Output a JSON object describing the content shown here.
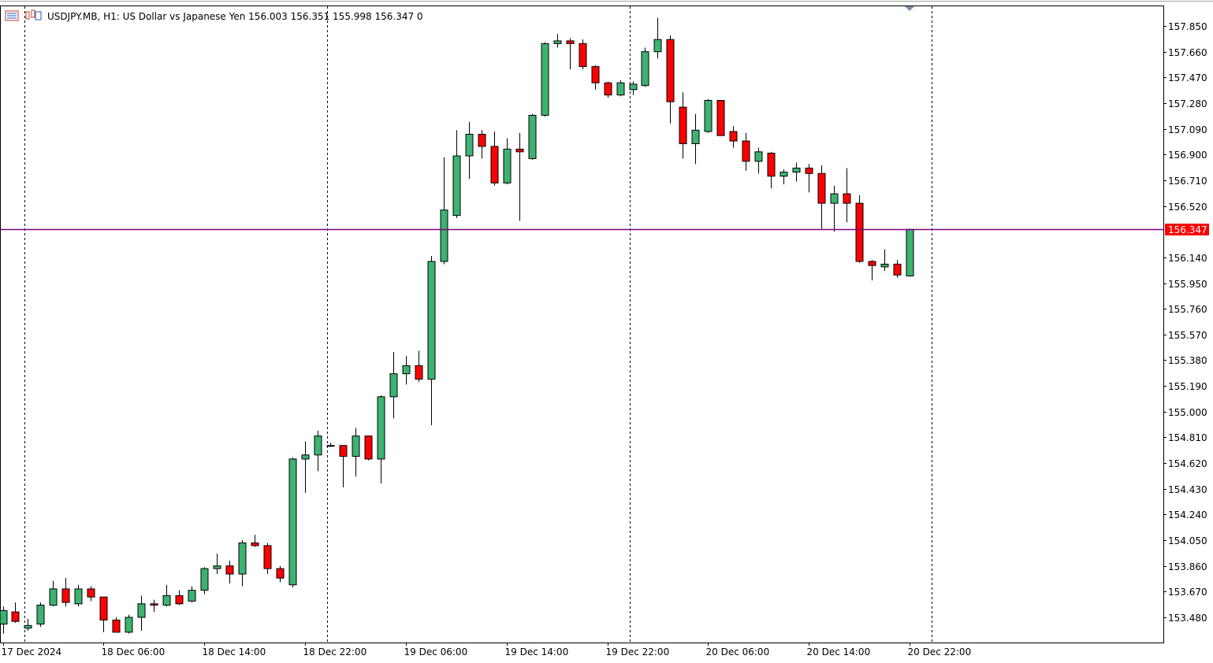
{
  "header": {
    "symbol_line": "USDJPY.MB, H1:  US Dollar vs Japanese Yen  156.003 156.351 155.998 156.347  0"
  },
  "colors": {
    "bull": "#3CB371",
    "bear": "#FF0000",
    "wick": "#000000",
    "bid_line": "#800080",
    "price_tag_bg": "#FF0000",
    "grid": "#000000",
    "background": "#FFFFFF"
  },
  "chart_data": {
    "type": "candlestick",
    "title": "USDJPY.MB, H1:  US Dollar vs Japanese Yen",
    "timeframe": "H1",
    "last_price": 156.347,
    "last_price_label": "156.347",
    "ylim": [
      153.33,
      157.98
    ],
    "y_ticks": [
      157.85,
      157.66,
      157.47,
      157.28,
      157.09,
      156.9,
      156.71,
      156.52,
      156.14,
      155.95,
      155.76,
      155.57,
      155.38,
      155.19,
      155.0,
      154.81,
      154.62,
      154.43,
      154.24,
      154.05,
      153.86,
      153.67,
      153.48
    ],
    "y_tick_labels": [
      "157.850",
      "157.660",
      "157.470",
      "157.280",
      "157.090",
      "156.900",
      "156.710",
      "156.520",
      "156.140",
      "155.950",
      "155.760",
      "155.570",
      "155.380",
      "155.190",
      "155.000",
      "154.810",
      "154.620",
      "154.430",
      "154.240",
      "154.050",
      "153.860",
      "153.670",
      "153.480"
    ],
    "x_tick_labels": [
      {
        "label": "17 Dec 2024",
        "index": 0
      },
      {
        "label": "18 Dec 06:00",
        "index": 8
      },
      {
        "label": "18 Dec 14:00",
        "index": 16
      },
      {
        "label": "18 Dec 22:00",
        "index": 24
      },
      {
        "label": "19 Dec 06:00",
        "index": 32
      },
      {
        "label": "19 Dec 14:00",
        "index": 40
      },
      {
        "label": "19 Dec 22:00",
        "index": 48
      },
      {
        "label": "20 Dec 06:00",
        "index": 56
      },
      {
        "label": "20 Dec 14:00",
        "index": 64
      },
      {
        "label": "20 Dec 22:00",
        "index": 72
      }
    ],
    "separator_indices": [
      1.75,
      25.75,
      49.75,
      73.75
    ],
    "candles": [
      {
        "o": 153.43,
        "h": 153.56,
        "l": 153.36,
        "c": 153.53
      },
      {
        "o": 153.52,
        "h": 153.59,
        "l": 153.44,
        "c": 153.45
      },
      {
        "o": 153.4,
        "h": 153.47,
        "l": 153.38,
        "c": 153.42
      },
      {
        "o": 153.43,
        "h": 153.59,
        "l": 153.41,
        "c": 153.57
      },
      {
        "o": 153.57,
        "h": 153.75,
        "l": 153.56,
        "c": 153.69
      },
      {
        "o": 153.69,
        "h": 153.77,
        "l": 153.56,
        "c": 153.59
      },
      {
        "o": 153.58,
        "h": 153.72,
        "l": 153.56,
        "c": 153.69
      },
      {
        "o": 153.69,
        "h": 153.71,
        "l": 153.6,
        "c": 153.63
      },
      {
        "o": 153.63,
        "h": 153.63,
        "l": 153.37,
        "c": 153.46
      },
      {
        "o": 153.46,
        "h": 153.48,
        "l": 153.37,
        "c": 153.37
      },
      {
        "o": 153.37,
        "h": 153.5,
        "l": 153.36,
        "c": 153.48
      },
      {
        "o": 153.48,
        "h": 153.64,
        "l": 153.38,
        "c": 153.58
      },
      {
        "o": 153.58,
        "h": 153.61,
        "l": 153.52,
        "c": 153.57
      },
      {
        "o": 153.57,
        "h": 153.72,
        "l": 153.56,
        "c": 153.64
      },
      {
        "o": 153.64,
        "h": 153.68,
        "l": 153.57,
        "c": 153.58
      },
      {
        "o": 153.6,
        "h": 153.71,
        "l": 153.59,
        "c": 153.68
      },
      {
        "o": 153.68,
        "h": 153.85,
        "l": 153.65,
        "c": 153.84
      },
      {
        "o": 153.84,
        "h": 153.95,
        "l": 153.8,
        "c": 153.86
      },
      {
        "o": 153.86,
        "h": 153.9,
        "l": 153.73,
        "c": 153.8
      },
      {
        "o": 153.8,
        "h": 154.05,
        "l": 153.71,
        "c": 154.03
      },
      {
        "o": 154.03,
        "h": 154.09,
        "l": 154.0,
        "c": 154.01
      },
      {
        "o": 154.01,
        "h": 154.03,
        "l": 153.8,
        "c": 153.84
      },
      {
        "o": 153.84,
        "h": 153.86,
        "l": 153.74,
        "c": 153.77
      },
      {
        "o": 153.72,
        "h": 154.66,
        "l": 153.7,
        "c": 154.65
      },
      {
        "o": 154.65,
        "h": 154.78,
        "l": 154.4,
        "c": 154.68
      },
      {
        "o": 154.68,
        "h": 154.86,
        "l": 154.56,
        "c": 154.82
      },
      {
        "o": 154.75,
        "h": 154.77,
        "l": 154.74,
        "c": 154.75
      },
      {
        "o": 154.75,
        "h": 154.75,
        "l": 154.44,
        "c": 154.67
      },
      {
        "o": 154.67,
        "h": 154.88,
        "l": 154.52,
        "c": 154.82
      },
      {
        "o": 154.82,
        "h": 154.82,
        "l": 154.64,
        "c": 154.65
      },
      {
        "o": 154.65,
        "h": 155.12,
        "l": 154.47,
        "c": 155.11
      },
      {
        "o": 155.11,
        "h": 155.44,
        "l": 154.95,
        "c": 155.28
      },
      {
        "o": 155.28,
        "h": 155.41,
        "l": 155.2,
        "c": 155.34
      },
      {
        "o": 155.34,
        "h": 155.45,
        "l": 155.22,
        "c": 155.24
      },
      {
        "o": 155.24,
        "h": 156.15,
        "l": 154.9,
        "c": 156.11
      },
      {
        "o": 156.11,
        "h": 156.88,
        "l": 156.09,
        "c": 156.49
      },
      {
        "o": 156.45,
        "h": 157.08,
        "l": 156.43,
        "c": 156.89
      },
      {
        "o": 156.89,
        "h": 157.14,
        "l": 156.72,
        "c": 157.05
      },
      {
        "o": 157.05,
        "h": 157.08,
        "l": 156.87,
        "c": 156.96
      },
      {
        "o": 156.96,
        "h": 157.07,
        "l": 156.67,
        "c": 156.69
      },
      {
        "o": 156.69,
        "h": 157.02,
        "l": 156.68,
        "c": 156.94
      },
      {
        "o": 156.94,
        "h": 157.06,
        "l": 156.41,
        "c": 156.92
      },
      {
        "o": 156.87,
        "h": 157.2,
        "l": 156.86,
        "c": 157.19
      },
      {
        "o": 157.19,
        "h": 157.73,
        "l": 157.18,
        "c": 157.72
      },
      {
        "o": 157.72,
        "h": 157.79,
        "l": 157.69,
        "c": 157.74
      },
      {
        "o": 157.74,
        "h": 157.76,
        "l": 157.53,
        "c": 157.72
      },
      {
        "o": 157.72,
        "h": 157.75,
        "l": 157.53,
        "c": 157.55
      },
      {
        "o": 157.55,
        "h": 157.56,
        "l": 157.38,
        "c": 157.43
      },
      {
        "o": 157.43,
        "h": 157.44,
        "l": 157.32,
        "c": 157.34
      },
      {
        "o": 157.34,
        "h": 157.45,
        "l": 157.33,
        "c": 157.43
      },
      {
        "o": 157.38,
        "h": 157.44,
        "l": 157.34,
        "c": 157.42
      },
      {
        "o": 157.41,
        "h": 157.69,
        "l": 157.4,
        "c": 157.66
      },
      {
        "o": 157.66,
        "h": 157.91,
        "l": 157.61,
        "c": 157.75
      },
      {
        "o": 157.75,
        "h": 157.78,
        "l": 157.13,
        "c": 157.29
      },
      {
        "o": 157.25,
        "h": 157.36,
        "l": 156.87,
        "c": 156.98
      },
      {
        "o": 156.98,
        "h": 157.2,
        "l": 156.83,
        "c": 157.08
      },
      {
        "o": 157.07,
        "h": 157.31,
        "l": 157.06,
        "c": 157.3
      },
      {
        "o": 157.3,
        "h": 157.3,
        "l": 157.04,
        "c": 157.04
      },
      {
        "o": 157.07,
        "h": 157.11,
        "l": 156.95,
        "c": 157.0
      },
      {
        "o": 157.0,
        "h": 157.06,
        "l": 156.78,
        "c": 156.85
      },
      {
        "o": 156.85,
        "h": 156.95,
        "l": 156.76,
        "c": 156.92
      },
      {
        "o": 156.91,
        "h": 156.92,
        "l": 156.65,
        "c": 156.74
      },
      {
        "o": 156.74,
        "h": 156.79,
        "l": 156.68,
        "c": 156.77
      },
      {
        "o": 156.77,
        "h": 156.84,
        "l": 156.7,
        "c": 156.8
      },
      {
        "o": 156.8,
        "h": 156.83,
        "l": 156.62,
        "c": 156.76
      },
      {
        "o": 156.76,
        "h": 156.82,
        "l": 156.35,
        "c": 156.54
      },
      {
        "o": 156.54,
        "h": 156.67,
        "l": 156.33,
        "c": 156.61
      },
      {
        "o": 156.61,
        "h": 156.8,
        "l": 156.4,
        "c": 156.54
      },
      {
        "o": 156.54,
        "h": 156.6,
        "l": 156.1,
        "c": 156.11
      },
      {
        "o": 156.11,
        "h": 156.12,
        "l": 155.97,
        "c": 156.08
      },
      {
        "o": 156.07,
        "h": 156.2,
        "l": 156.04,
        "c": 156.09
      },
      {
        "o": 156.09,
        "h": 156.12,
        "l": 155.99,
        "c": 156.01
      },
      {
        "o": 156.003,
        "h": 156.351,
        "l": 155.998,
        "c": 156.347
      }
    ]
  }
}
